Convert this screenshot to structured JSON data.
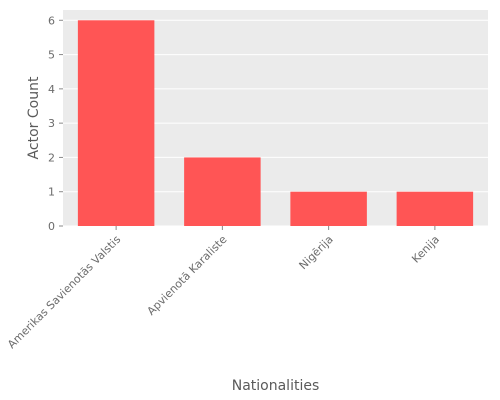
{
  "chart_data": {
    "type": "bar",
    "categories": [
      "Amerikas Savienotās Valstis",
      "Apvienotā Karaliste",
      "Nigērija",
      "Kenija"
    ],
    "values": [
      6,
      2,
      1,
      1
    ],
    "xlabel": "Nationalities",
    "ylabel": "Actor Count",
    "ylim": [
      0,
      6.3
    ],
    "yticks": [
      0,
      1,
      2,
      3,
      4,
      5,
      6
    ],
    "grid": true,
    "bar_color": "#ff5555",
    "background_color": "#ebebeb",
    "grid_color": "#ffffff"
  }
}
